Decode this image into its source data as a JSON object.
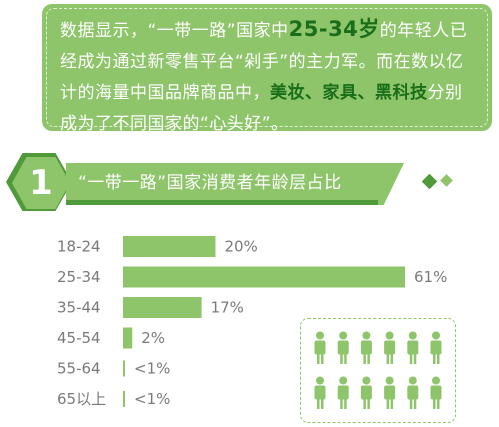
{
  "info": {
    "t1": "数据显示，“一带一路”国家中",
    "h1": "25-34岁",
    "t2": "的年轻人已经成为通过新零售平台“剁手”的主力军。而在数以亿计的海量中国品牌商品中，",
    "h2": "美妆、家具、黑科技",
    "t3": "分别成为了不同国家的“心头好”。"
  },
  "section": {
    "number": "1",
    "title": "“一带一路”国家消费者年龄层占比"
  },
  "chart_data": {
    "type": "bar",
    "orientation": "horizontal",
    "categories": [
      "18-24",
      "25-34",
      "35-44",
      "45-54",
      "55-64",
      "65以上"
    ],
    "values": [
      20,
      61,
      17,
      2,
      1,
      1
    ],
    "labels": [
      "20%",
      "61%",
      "17%",
      "2%",
      "<1%",
      "<1%"
    ],
    "xlim": [
      0,
      61
    ],
    "colors": {
      "bar": "#8ec56a",
      "accent": "#4f9a3a",
      "text": "#7a7a7a"
    }
  },
  "people_icon": {
    "rows": 2,
    "per_row": 6,
    "icon": "person-icon"
  }
}
